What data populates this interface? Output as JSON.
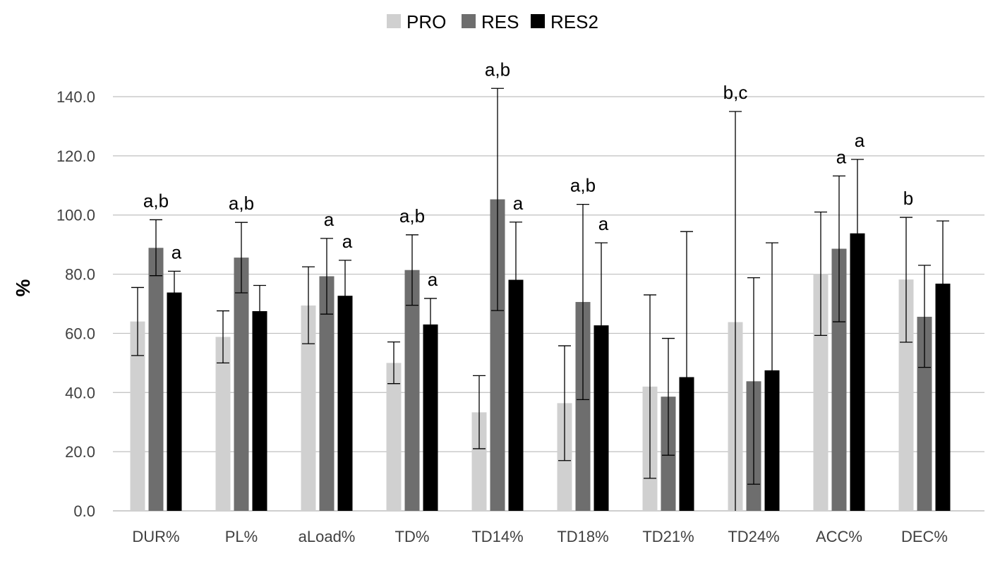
{
  "chart_data": {
    "type": "bar",
    "title": "",
    "xlabel": "",
    "ylabel": "%",
    "ylim": [
      0,
      140
    ],
    "ytick_step": 20,
    "ytick_labels": [
      "0.0",
      "20.0",
      "40.0",
      "60.0",
      "80.0",
      "100.0",
      "120.0",
      "140.0"
    ],
    "grid": true,
    "legend_position": "top-center",
    "categories": [
      "DUR%",
      "PL%",
      "aLoad%",
      "TD%",
      "TD14%",
      "TD18%",
      "TD21%",
      "TD24%",
      "ACC%",
      "DEC%"
    ],
    "series": [
      {
        "name": "PRO",
        "color": "#d0d0d0",
        "values": [
          64.0,
          58.8,
          69.4,
          50.0,
          33.3,
          36.4,
          42.0,
          63.8,
          80.1,
          78.2
        ],
        "err_low": [
          52.5,
          50.0,
          56.5,
          43.0,
          21.0,
          17.0,
          11.0,
          0.0,
          59.3,
          57.0
        ],
        "err_high": [
          75.5,
          67.6,
          82.5,
          57.1,
          45.7,
          55.8,
          73.0,
          135.0,
          101.0,
          99.2
        ]
      },
      {
        "name": "RES",
        "color": "#6e6e6e",
        "values": [
          88.9,
          85.6,
          79.3,
          81.4,
          105.3,
          70.6,
          38.6,
          43.8,
          88.6,
          65.6
        ],
        "err_low": [
          79.5,
          73.7,
          66.5,
          69.5,
          67.7,
          37.6,
          18.8,
          9.0,
          63.9,
          48.5
        ],
        "err_high": [
          98.4,
          97.5,
          92.1,
          93.3,
          142.8,
          103.6,
          58.3,
          78.8,
          113.2,
          83.0
        ]
      },
      {
        "name": "RES2",
        "color": "#000000",
        "values": [
          73.8,
          67.5,
          72.7,
          63.0,
          78.1,
          62.7,
          45.2,
          47.5,
          93.8,
          76.8
        ],
        "err_low": [
          66.3,
          58.7,
          60.6,
          54.1,
          58.6,
          34.8,
          0.0,
          4.4,
          68.7,
          55.6
        ],
        "err_high": [
          81.0,
          76.2,
          84.7,
          71.8,
          97.6,
          90.6,
          94.4,
          90.6,
          118.8,
          98.0
        ]
      }
    ],
    "annotations": [
      {
        "category": "DUR%",
        "series": "RES",
        "text": "a,b"
      },
      {
        "category": "DUR%",
        "series": "RES2",
        "text": "a"
      },
      {
        "category": "PL%",
        "series": "RES",
        "text": "a,b"
      },
      {
        "category": "aLoad%",
        "series": "RES",
        "text": "a"
      },
      {
        "category": "aLoad%",
        "series": "RES2",
        "text": "a"
      },
      {
        "category": "TD%",
        "series": "RES",
        "text": "a,b"
      },
      {
        "category": "TD%",
        "series": "RES2",
        "text": "a"
      },
      {
        "category": "TD14%",
        "series": "RES",
        "text": "a,b"
      },
      {
        "category": "TD14%",
        "series": "RES2",
        "text": "a"
      },
      {
        "category": "TD18%",
        "series": "RES",
        "text": "a,b"
      },
      {
        "category": "TD18%",
        "series": "RES2",
        "text": "a"
      },
      {
        "category": "TD24%",
        "series": "PRO",
        "text": "b,c"
      },
      {
        "category": "ACC%",
        "series": "RES",
        "text": "a"
      },
      {
        "category": "ACC%",
        "series": "RES2",
        "text": "a"
      },
      {
        "category": "DEC%",
        "series": "PRO",
        "text": "b"
      }
    ]
  }
}
